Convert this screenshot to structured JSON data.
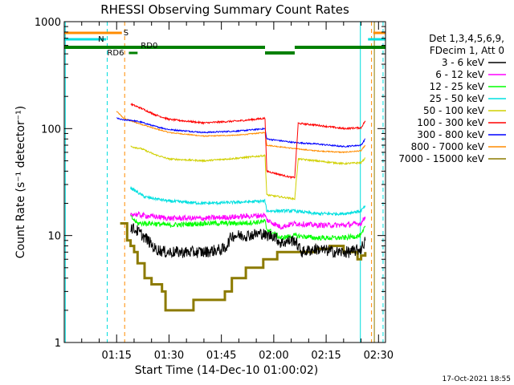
{
  "chart_data": {
    "type": "line",
    "title": "RHESSI Observing Summary Count Rates",
    "xlabel": "Start Time (14-Dec-10 01:00:02)",
    "ylabel": "Count Rate (s⁻¹ detector⁻¹)",
    "yscale": "log",
    "ylim": [
      1,
      1000
    ],
    "xlim_min": [
      0,
      92
    ],
    "yticks": [
      1,
      10,
      100,
      1000
    ],
    "ytick_labels": [
      "1",
      "10",
      "100",
      "1000"
    ],
    "xticks_min": [
      15,
      30,
      45,
      60,
      75,
      90
    ],
    "xtick_labels": [
      "01:15",
      "01:30",
      "01:45",
      "02:00",
      "02:15",
      "02:30"
    ],
    "legend_title_1": "Det 1,3,4,5,6,9,",
    "legend_title_2": "FDecim 1, Att 0",
    "footer_date": "17-Oct-2021 18:55",
    "flag_labels": {
      "S": "S",
      "N": "N",
      "RD6": "RD6",
      "RD0": "RD0"
    },
    "flags": {
      "saa": [
        [
          0,
          16.5
        ],
        [
          88.5,
          92
        ]
      ],
      "night": [
        [
          0,
          12
        ],
        [
          87,
          92
        ]
      ],
      "rd0": [
        [
          0,
          57.5
        ],
        [
          66,
          92
        ]
      ],
      "rd0_gap": [
        [
          57.5,
          66
        ]
      ],
      "rd6": [
        [
          18.5,
          21
        ]
      ]
    },
    "vlines": [
      {
        "t": 0.3,
        "color": "#00dede",
        "dash": "solid"
      },
      {
        "t": 12.3,
        "color": "#00dede",
        "dash": "dash"
      },
      {
        "t": 17.3,
        "color": "#ff8c00",
        "dash": "dash"
      },
      {
        "t": 84.8,
        "color": "#00dede",
        "dash": "solid"
      },
      {
        "t": 88.0,
        "color": "#ff8c00",
        "dash": "dash"
      },
      {
        "t": 88.8,
        "color": "#8c7a00",
        "dash": "solid"
      },
      {
        "t": 91.3,
        "color": "#00dede",
        "dash": "dash"
      }
    ],
    "series": [
      {
        "name": "3 - 6 keV",
        "color": "#000000",
        "noise": 0.35,
        "seg": [
          [
            19,
            12
          ],
          [
            21,
            11
          ],
          [
            24,
            9
          ],
          [
            26,
            7.5
          ],
          [
            29,
            7
          ],
          [
            35,
            7
          ],
          [
            40,
            7
          ],
          [
            46,
            7.5
          ],
          [
            48,
            10
          ],
          [
            52,
            10
          ],
          [
            57,
            10.5
          ],
          [
            57.5,
            10
          ],
          [
            60,
            10
          ],
          [
            62,
            8.5
          ],
          [
            65,
            9
          ],
          [
            66,
            9
          ],
          [
            68,
            7
          ],
          [
            72,
            7.5
          ],
          [
            78,
            7
          ],
          [
            82,
            7
          ],
          [
            85,
            7.5
          ],
          [
            86.2,
            9
          ]
        ]
      },
      {
        "name": "6 - 12 keV",
        "color": "#ff00ff",
        "noise": 0.16,
        "seg": [
          [
            19,
            16
          ],
          [
            22,
            15.5
          ],
          [
            30,
            14.5
          ],
          [
            40,
            14.5
          ],
          [
            50,
            15
          ],
          [
            57.5,
            15.5
          ],
          [
            58,
            14
          ],
          [
            62,
            12
          ],
          [
            66,
            13
          ],
          [
            72,
            12.5
          ],
          [
            80,
            12.5
          ],
          [
            85,
            13
          ],
          [
            86.2,
            15
          ]
        ]
      },
      {
        "name": "12 - 25 keV",
        "color": "#00ff00",
        "noise": 0.15,
        "seg": [
          [
            19,
            15
          ],
          [
            21,
            13
          ],
          [
            25,
            13
          ],
          [
            30,
            12.5
          ],
          [
            40,
            13
          ],
          [
            50,
            13
          ],
          [
            57.5,
            13.5
          ],
          [
            58,
            11.5
          ],
          [
            62,
            9.5
          ],
          [
            66,
            10
          ],
          [
            72,
            9.5
          ],
          [
            80,
            9.5
          ],
          [
            85,
            10
          ],
          [
            86.2,
            12
          ]
        ]
      },
      {
        "name": "25 - 50 keV",
        "color": "#00e0e0",
        "noise": 0.09,
        "seg": [
          [
            19,
            28
          ],
          [
            23,
            23
          ],
          [
            30,
            21
          ],
          [
            40,
            20
          ],
          [
            50,
            20.5
          ],
          [
            57.5,
            21
          ],
          [
            58,
            17
          ],
          [
            66,
            17
          ],
          [
            72,
            16
          ],
          [
            80,
            16
          ],
          [
            85,
            17
          ],
          [
            86.2,
            19
          ]
        ]
      },
      {
        "name": "50 - 100 keV",
        "color": "#d0d000",
        "noise": 0.05,
        "seg": [
          [
            19,
            68
          ],
          [
            22,
            65
          ],
          [
            26,
            57
          ],
          [
            30,
            52
          ],
          [
            40,
            50
          ],
          [
            50,
            53
          ],
          [
            57.5,
            56
          ],
          [
            58,
            24
          ],
          [
            66,
            22
          ],
          [
            67,
            52
          ],
          [
            72,
            50
          ],
          [
            80,
            47
          ],
          [
            85,
            48
          ],
          [
            86.2,
            53
          ]
        ]
      },
      {
        "name": "100 - 300 keV",
        "color": "#ff0000",
        "noise": 0.05,
        "seg": [
          [
            19,
            170
          ],
          [
            22,
            155
          ],
          [
            26,
            135
          ],
          [
            30,
            122
          ],
          [
            40,
            113
          ],
          [
            50,
            118
          ],
          [
            57.5,
            125
          ],
          [
            58,
            40
          ],
          [
            62,
            37
          ],
          [
            65,
            35
          ],
          [
            66,
            35
          ],
          [
            67,
            112
          ],
          [
            72,
            108
          ],
          [
            80,
            100
          ],
          [
            85,
            102
          ],
          [
            86.2,
            118
          ]
        ]
      },
      {
        "name": "300 - 800 keV",
        "color": "#0000ff",
        "noise": 0.04,
        "seg": [
          [
            15,
            125
          ],
          [
            17,
            120
          ],
          [
            19,
            120
          ],
          [
            22,
            115
          ],
          [
            26,
            105
          ],
          [
            30,
            98
          ],
          [
            40,
            92
          ],
          [
            50,
            95
          ],
          [
            57.5,
            100
          ],
          [
            58,
            80
          ],
          [
            66,
            74
          ],
          [
            72,
            72
          ],
          [
            80,
            68
          ],
          [
            85,
            70
          ],
          [
            86.2,
            80
          ]
        ]
      },
      {
        "name": "800 - 7000 keV",
        "color": "#ff8c00",
        "noise": 0.03,
        "seg": [
          [
            15,
            145
          ],
          [
            17,
            125
          ],
          [
            19,
            118
          ],
          [
            22,
            110
          ],
          [
            26,
            100
          ],
          [
            30,
            92
          ],
          [
            40,
            85
          ],
          [
            50,
            87
          ],
          [
            57.5,
            92
          ],
          [
            58,
            70
          ],
          [
            66,
            65
          ],
          [
            72,
            62
          ],
          [
            80,
            60
          ],
          [
            85,
            62
          ],
          [
            86.2,
            70
          ]
        ]
      },
      {
        "name": "7000 - 15000 keV",
        "color": "#8c7a00",
        "noise": 0.0,
        "seg": [
          [
            16,
            13
          ],
          [
            18,
            9
          ],
          [
            19,
            8
          ],
          [
            20,
            7
          ],
          [
            21,
            5.5
          ],
          [
            23,
            4
          ],
          [
            25,
            3.5
          ],
          [
            27,
            3.5
          ],
          [
            28,
            3
          ],
          [
            29,
            2
          ],
          [
            32,
            2
          ],
          [
            35,
            2
          ],
          [
            37,
            2.5
          ],
          [
            40,
            2.5
          ],
          [
            44,
            2.5
          ],
          [
            46,
            3
          ],
          [
            48,
            4
          ],
          [
            52,
            5
          ],
          [
            57,
            6
          ],
          [
            58,
            6
          ],
          [
            61,
            7
          ],
          [
            66,
            7
          ],
          [
            70,
            7
          ],
          [
            72,
            7.5
          ],
          [
            76,
            8
          ],
          [
            80,
            7
          ],
          [
            82,
            7
          ],
          [
            84,
            6
          ],
          [
            85,
            6.5
          ],
          [
            86.2,
            7
          ]
        ]
      }
    ]
  }
}
